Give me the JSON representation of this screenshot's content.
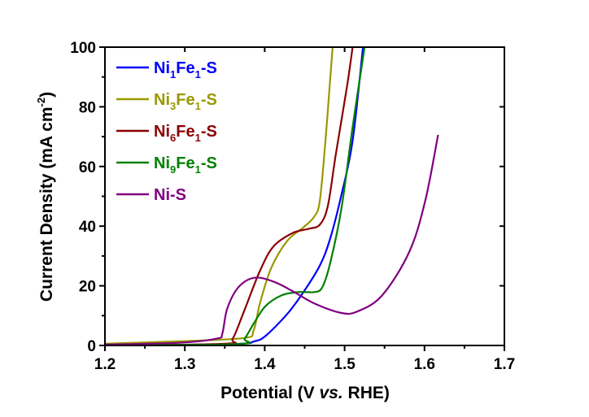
{
  "chart_data": {
    "type": "line",
    "title": "",
    "xlabel": {
      "main": "Potential (V ",
      "italic": "vs.",
      "end": " RHE)"
    },
    "ylabel": {
      "main": "Current Density (mA cm",
      "sup": "-2",
      "end": ")"
    },
    "xlim": [
      1.2,
      1.7
    ],
    "ylim": [
      0,
      100
    ],
    "xticks": [
      "1.2",
      "1.3",
      "1.4",
      "1.5",
      "1.6",
      "1.7"
    ],
    "yticks": [
      "0",
      "20",
      "40",
      "60",
      "80",
      "100"
    ],
    "grid": false,
    "legend_position": "top-left",
    "series": [
      {
        "name": "Ni1Fe1-S",
        "color": "#0000ff",
        "points": [
          [
            1.2,
            0
          ],
          [
            1.36,
            0.5
          ],
          [
            1.387,
            1.4
          ],
          [
            1.401,
            3.2
          ],
          [
            1.428,
            10.5
          ],
          [
            1.448,
            17.7
          ],
          [
            1.469,
            26.8
          ],
          [
            1.482,
            35.9
          ],
          [
            1.496,
            50.5
          ],
          [
            1.51,
            68.6
          ],
          [
            1.523,
            100
          ]
        ]
      },
      {
        "name": "Ni3Fe1-S",
        "color": "#999900",
        "points": [
          [
            1.2,
            0.6
          ],
          [
            1.292,
            1.4
          ],
          [
            1.374,
            2.5
          ],
          [
            1.386,
            5
          ],
          [
            1.394,
            14.1
          ],
          [
            1.408,
            25.9
          ],
          [
            1.428,
            35
          ],
          [
            1.448,
            39.5
          ],
          [
            1.462,
            43.2
          ],
          [
            1.469,
            48.6
          ],
          [
            1.476,
            68.6
          ],
          [
            1.482,
            89.5
          ],
          [
            1.485,
            100
          ]
        ]
      },
      {
        "name": "Ni6Fe1-S",
        "color": "#8b0000",
        "points": [
          [
            1.2,
            0
          ],
          [
            1.35,
            0.6
          ],
          [
            1.36,
            2.3
          ],
          [
            1.374,
            11.4
          ],
          [
            1.394,
            25
          ],
          [
            1.411,
            33.2
          ],
          [
            1.435,
            37.7
          ],
          [
            1.455,
            39.1
          ],
          [
            1.469,
            40.5
          ],
          [
            1.479,
            46.8
          ],
          [
            1.489,
            64.1
          ],
          [
            1.503,
            86.8
          ],
          [
            1.51,
            100
          ]
        ]
      },
      {
        "name": "Ni9Fe1-S",
        "color": "#008000",
        "points": [
          [
            1.2,
            0
          ],
          [
            1.367,
            0.5
          ],
          [
            1.375,
            2.3
          ],
          [
            1.387,
            7.7
          ],
          [
            1.401,
            13.2
          ],
          [
            1.421,
            16.8
          ],
          [
            1.442,
            17.9
          ],
          [
            1.462,
            17.9
          ],
          [
            1.472,
            19.5
          ],
          [
            1.482,
            27.7
          ],
          [
            1.496,
            45.9
          ],
          [
            1.51,
            73.2
          ],
          [
            1.525,
            100
          ]
        ]
      },
      {
        "name": "Ni-S",
        "color": "#800080",
        "points": [
          [
            1.2,
            0.3
          ],
          [
            1.292,
            0.9
          ],
          [
            1.34,
            2.3
          ],
          [
            1.347,
            4.1
          ],
          [
            1.353,
            12.3
          ],
          [
            1.367,
            19.5
          ],
          [
            1.387,
            22.7
          ],
          [
            1.411,
            21.4
          ],
          [
            1.435,
            18.2
          ],
          [
            1.462,
            14.1
          ],
          [
            1.496,
            10.9
          ],
          [
            1.516,
            11.4
          ],
          [
            1.547,
            16.8
          ],
          [
            1.581,
            31.4
          ],
          [
            1.601,
            48.6
          ],
          [
            1.617,
            70.6
          ]
        ]
      }
    ]
  }
}
